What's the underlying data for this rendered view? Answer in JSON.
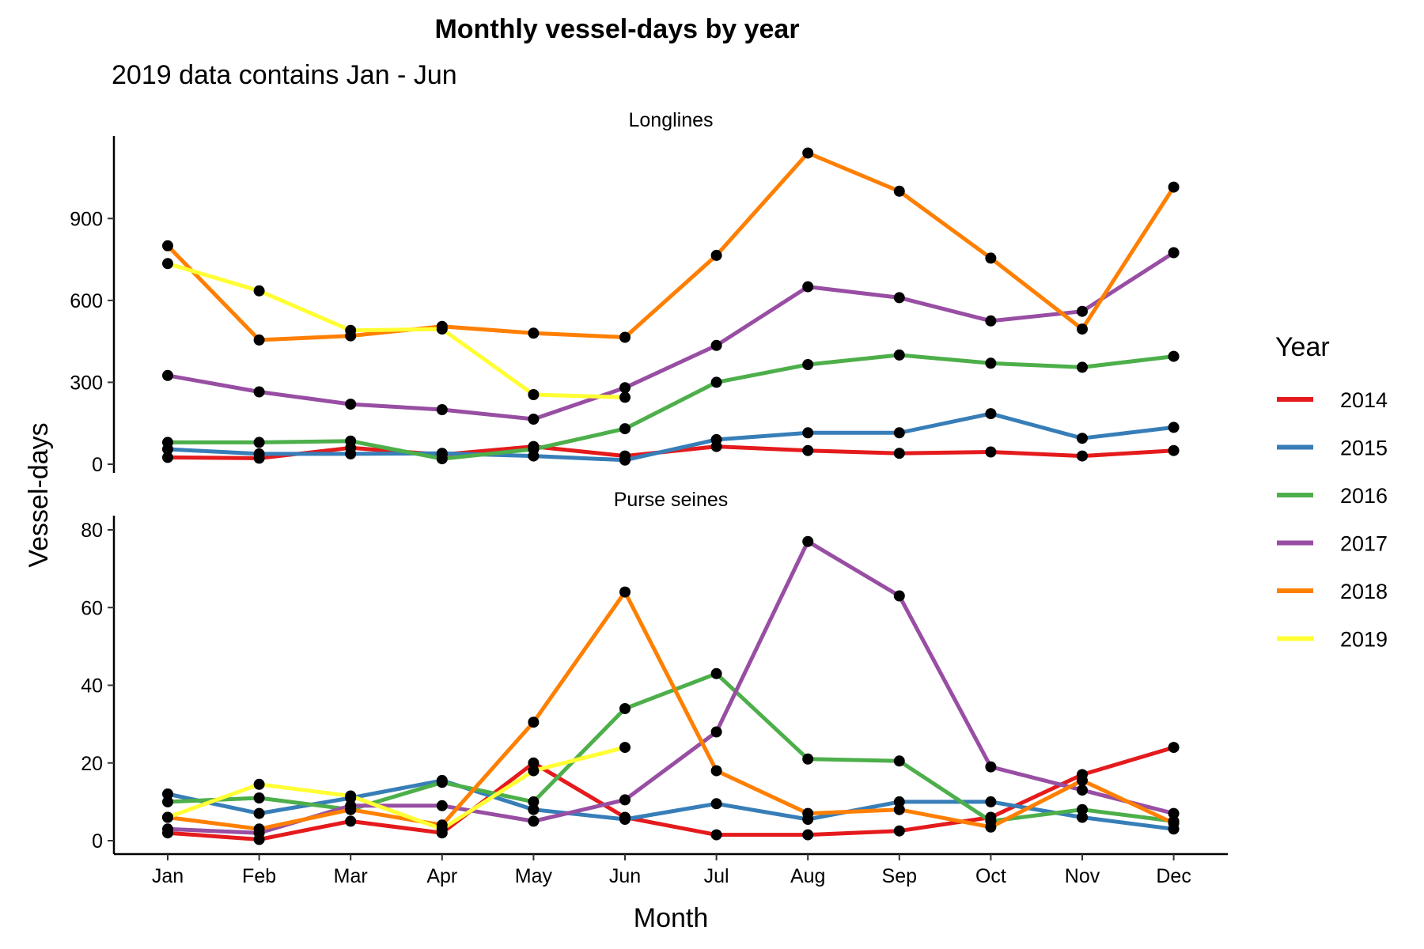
{
  "chart_data": {
    "type": "line",
    "title": "Monthly vessel-days by year",
    "subtitle": "2019 data contains Jan - Jun",
    "xlabel": "Month",
    "ylabel": "Vessel-days",
    "categories": [
      "Jan",
      "Feb",
      "Mar",
      "Apr",
      "May",
      "Jun",
      "Jul",
      "Aug",
      "Sep",
      "Oct",
      "Nov",
      "Dec"
    ],
    "legend": {
      "title": "Year",
      "position": "right"
    },
    "grid": false,
    "colors": {
      "2014": "#E41A1C",
      "2015": "#377EB8",
      "2016": "#4DAF4A",
      "2017": "#984EA3",
      "2018": "#FF7F00",
      "2019": "#FFFF33"
    },
    "point_color": "#000000",
    "facets": [
      {
        "label": "Longlines",
        "ylim": [
          0,
          1150
        ],
        "yticks": [
          0,
          300,
          600,
          900
        ],
        "series": [
          {
            "name": "2014",
            "values": [
              25,
              22,
              60,
              35,
              65,
              30,
              65,
              50,
              40,
              45,
              30,
              50
            ]
          },
          {
            "name": "2015",
            "values": [
              55,
              38,
              38,
              40,
              30,
              15,
              90,
              115,
              115,
              185,
              95,
              135
            ]
          },
          {
            "name": "2016",
            "values": [
              80,
              80,
              85,
              20,
              55,
              130,
              300,
              365,
              400,
              370,
              355,
              395
            ]
          },
          {
            "name": "2017",
            "values": [
              325,
              265,
              220,
              200,
              165,
              280,
              435,
              650,
              610,
              525,
              560,
              775
            ]
          },
          {
            "name": "2018",
            "values": [
              800,
              455,
              470,
              505,
              480,
              465,
              765,
              1140,
              1000,
              755,
              495,
              1015
            ]
          },
          {
            "name": "2019",
            "values": [
              735,
              635,
              490,
              495,
              255,
              245,
              null,
              null,
              null,
              null,
              null,
              null
            ]
          }
        ]
      },
      {
        "label": "Purse seines",
        "ylim": [
          0,
          80
        ],
        "yticks": [
          0,
          20,
          40,
          60,
          80
        ],
        "series": [
          {
            "name": "2014",
            "values": [
              2,
              0.3,
              5,
              2,
              20,
              6,
              1.5,
              1.5,
              2.5,
              6,
              17,
              24
            ]
          },
          {
            "name": "2015",
            "values": [
              12,
              7,
              11,
              15.5,
              8,
              5.5,
              9.5,
              5.5,
              10,
              10,
              6,
              3
            ]
          },
          {
            "name": "2016",
            "values": [
              10,
              11,
              8,
              15,
              10,
              34,
              43,
              21,
              20.5,
              5,
              8,
              5
            ]
          },
          {
            "name": "2017",
            "values": [
              3,
              2,
              9,
              9,
              5,
              10.5,
              28,
              77,
              63,
              19,
              13,
              7
            ]
          },
          {
            "name": "2018",
            "values": [
              6,
              3,
              8,
              4,
              30.5,
              64,
              18,
              7,
              8,
              3.5,
              15.5,
              4.5
            ]
          },
          {
            "name": "2019",
            "values": [
              6,
              14.5,
              11.5,
              3,
              18,
              24,
              null,
              null,
              null,
              null,
              null,
              null
            ]
          }
        ]
      }
    ]
  }
}
